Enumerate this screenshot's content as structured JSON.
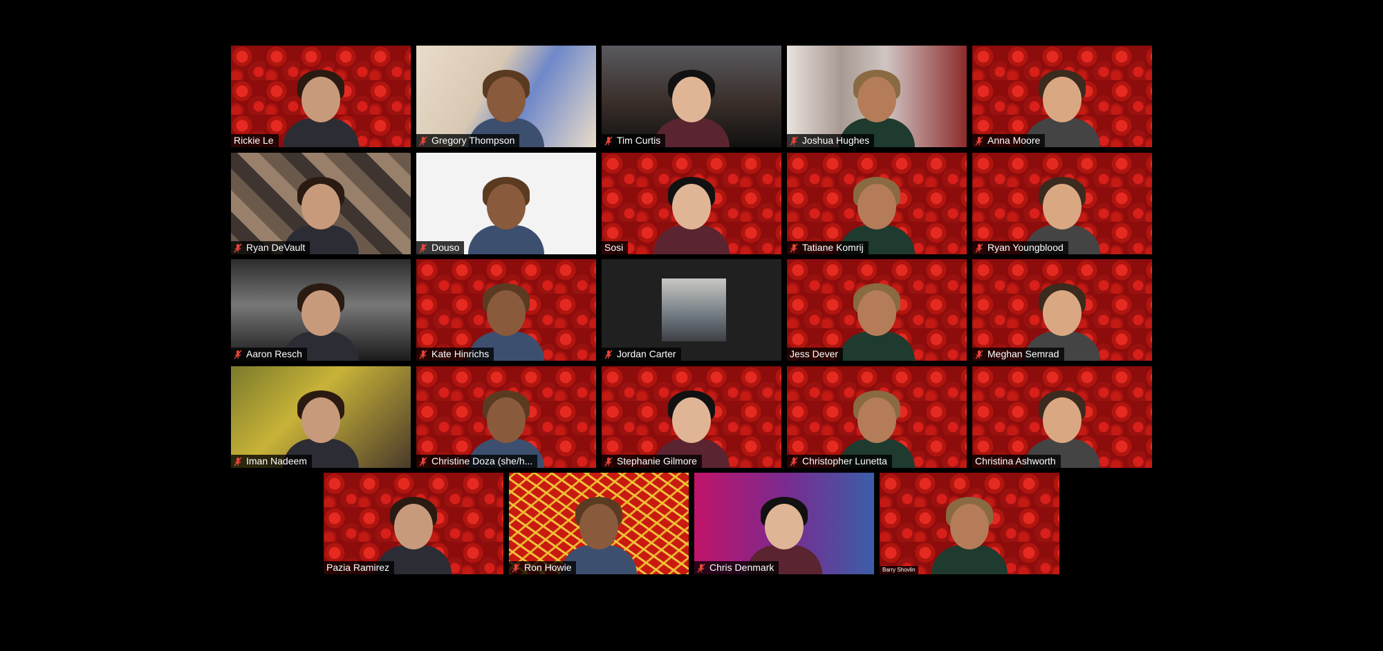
{
  "meeting": {
    "colors": {
      "background": "#000000",
      "label_bg": "#000000",
      "label_text": "#ffffff",
      "muted_icon": "#e8443a"
    },
    "rows": [
      [
        {
          "name": "Rickie Le",
          "muted": false,
          "bg": "roses"
        },
        {
          "name": "Gregory Thompson",
          "muted": true,
          "bg": "cartoon"
        },
        {
          "name": "Tim Curtis",
          "muted": true,
          "bg": "film"
        },
        {
          "name": "Joshua Hughes",
          "muted": true,
          "bg": "office"
        },
        {
          "name": "Anna Moore",
          "muted": true,
          "bg": "roses"
        }
      ],
      [
        {
          "name": "Ryan DeVault",
          "muted": true,
          "bg": "collage"
        },
        {
          "name": "Douso",
          "muted": true,
          "bg": "white"
        },
        {
          "name": "Sosi",
          "muted": false,
          "bg": "roses"
        },
        {
          "name": "Tatiane Komrij",
          "muted": true,
          "bg": "roses"
        },
        {
          "name": "Ryan Youngblood",
          "muted": true,
          "bg": "roses"
        }
      ],
      [
        {
          "name": "Aaron Resch",
          "muted": true,
          "bg": "ship"
        },
        {
          "name": "Kate Hinrichs",
          "muted": true,
          "bg": "roses"
        },
        {
          "name": "Jordan Carter",
          "muted": true,
          "bg": "dark",
          "video_off": true
        },
        {
          "name": "Jess Dever",
          "muted": false,
          "bg": "roses"
        },
        {
          "name": "Meghan Semrad",
          "muted": true,
          "bg": "roses"
        }
      ],
      [
        {
          "name": "Iman Nadeem",
          "muted": true,
          "bg": "sponge"
        },
        {
          "name": "Christine Doza (she/h...",
          "muted": true,
          "bg": "roses"
        },
        {
          "name": "Stephanie Gilmore",
          "muted": true,
          "bg": "roses"
        },
        {
          "name": "Christopher Lunetta",
          "muted": true,
          "bg": "roses"
        },
        {
          "name": "Christina Ashworth",
          "muted": false,
          "bg": "roses"
        }
      ],
      [
        {
          "name": "Pazia Ramirez",
          "muted": false,
          "bg": "roses"
        },
        {
          "name": "Ron Howie",
          "muted": true,
          "bg": "fries"
        },
        {
          "name": "Chris Denmark",
          "muted": true,
          "bg": "purple"
        },
        {
          "name": "Barry Shovlin",
          "muted": false,
          "bg": "roses",
          "small_label": true
        }
      ]
    ]
  }
}
